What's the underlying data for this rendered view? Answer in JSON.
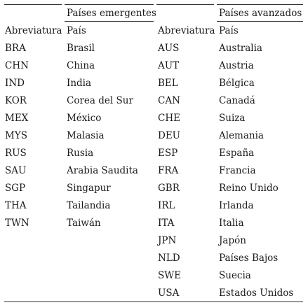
{
  "groups": {
    "emerging": "Países emergentes",
    "advanced": "Países avanzados"
  },
  "headers": {
    "abbreviation": "Abreviatura",
    "country": "País"
  },
  "emerging": [
    {
      "code": "BRA",
      "name": "Brasil"
    },
    {
      "code": "CHN",
      "name": "China"
    },
    {
      "code": "IND",
      "name": "India"
    },
    {
      "code": "KOR",
      "name": "Corea del Sur"
    },
    {
      "code": "MEX",
      "name": "México"
    },
    {
      "code": "MYS",
      "name": "Malasia"
    },
    {
      "code": "RUS",
      "name": "Rusia"
    },
    {
      "code": "SAU",
      "name": "Arabia Saudita"
    },
    {
      "code": "SGP",
      "name": "Singapur"
    },
    {
      "code": "THA",
      "name": "Tailandia"
    },
    {
      "code": "TWN",
      "name": "Taiwán"
    }
  ],
  "advanced": [
    {
      "code": "AUS",
      "name": "Australia"
    },
    {
      "code": "AUT",
      "name": "Austria"
    },
    {
      "code": "BEL",
      "name": "Bélgica"
    },
    {
      "code": "CAN",
      "name": "Canadá"
    },
    {
      "code": "CHE",
      "name": "Suiza"
    },
    {
      "code": "DEU",
      "name": "Alemania"
    },
    {
      "code": "ESP",
      "name": "España"
    },
    {
      "code": "FRA",
      "name": "Francia"
    },
    {
      "code": "GBR",
      "name": "Reino Unido"
    },
    {
      "code": "IRL",
      "name": "Irlanda"
    },
    {
      "code": "ITA",
      "name": "Italia"
    },
    {
      "code": "JPN",
      "name": "Japón"
    },
    {
      "code": "NLD",
      "name": "Países Bajos"
    },
    {
      "code": "SWE",
      "name": "Suecia"
    },
    {
      "code": "USA",
      "name": "Estados Unidos"
    }
  ]
}
